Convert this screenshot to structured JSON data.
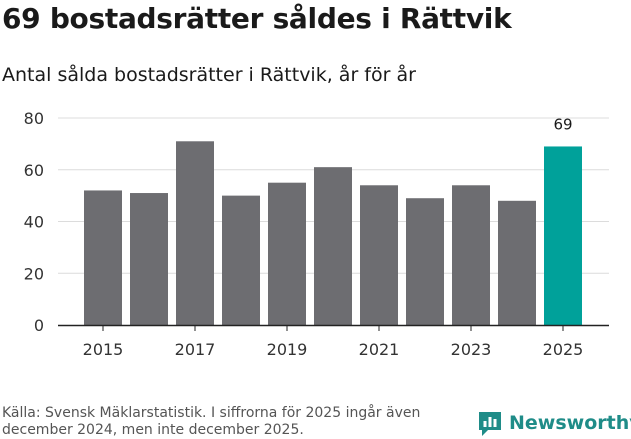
{
  "title": "69 bostadsrätter såldes i Rättvik",
  "subtitle": "Antal sålda bostadsrätter i Rättvik, år för år",
  "source": "Källa: Svensk Mäklarstatistik. I siffrorna för 2025 ingår även december 2024, men inte december 2025.",
  "brand": {
    "name": "Newsworthy",
    "icon": "newsworthy-logo-icon",
    "color": "#1f8c88"
  },
  "colors": {
    "bar": "#6d6d71",
    "highlight": "#00a19a",
    "grid": "#dcdcdc",
    "axis": "#222222"
  },
  "chart_data": {
    "type": "bar",
    "categories": [
      "2015",
      "2016",
      "2017",
      "2018",
      "2019",
      "2020",
      "2021",
      "2022",
      "2023",
      "2024",
      "2025"
    ],
    "values": [
      52,
      51,
      71,
      50,
      55,
      61,
      54,
      49,
      54,
      48,
      69
    ],
    "x_tick_labels": [
      "2015",
      "2017",
      "2019",
      "2021",
      "2023",
      "2025"
    ],
    "y_ticks": [
      0,
      20,
      40,
      60,
      80
    ],
    "ylim": [
      0,
      80
    ],
    "grid": true,
    "highlight_category": "2025",
    "data_labels": [
      {
        "category": "2025",
        "label": "69"
      }
    ]
  }
}
